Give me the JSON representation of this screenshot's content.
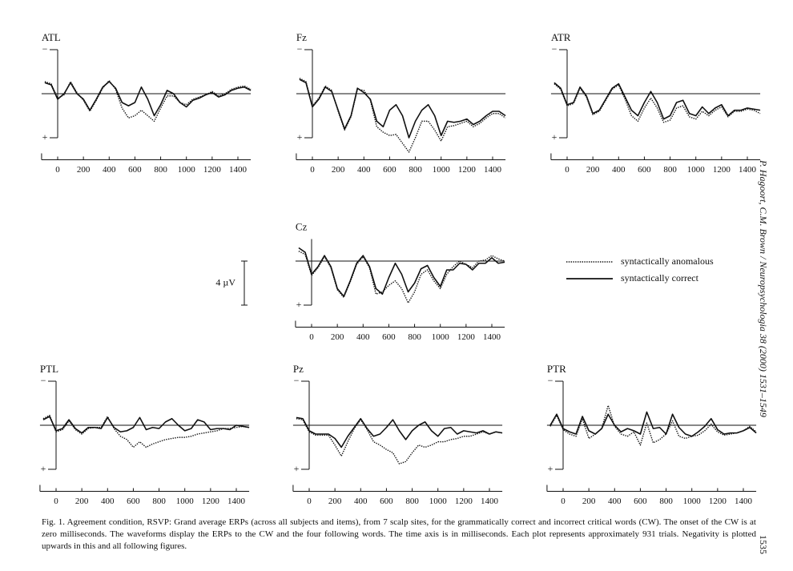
{
  "chart_data": [
    {
      "type": "line",
      "title": "ATL",
      "x": [
        -100,
        -50,
        0,
        50,
        100,
        150,
        200,
        250,
        300,
        350,
        400,
        450,
        500,
        550,
        600,
        650,
        700,
        750,
        800,
        850,
        900,
        950,
        1000,
        1050,
        1100,
        1150,
        1200,
        1250,
        1300,
        1350,
        1400,
        1450,
        1500
      ],
      "series": [
        {
          "name": "syntactically anomalous",
          "color": "#111111",
          "style": "dotted",
          "values": [
            -1.1,
            -0.9,
            0.4,
            0.1,
            -1.1,
            -0.1,
            0.6,
            1.6,
            0.6,
            -0.5,
            -1.2,
            -0.4,
            1.3,
            2.2,
            2.0,
            1.5,
            2.0,
            2.5,
            1.3,
            0.2,
            0.2,
            0.8,
            1.0,
            0.5,
            0.3,
            0.1,
            -0.2,
            0.2,
            0,
            -0.4,
            -0.6,
            -0.7,
            -0.4
          ]
        },
        {
          "name": "syntactically correct",
          "color": "#111111",
          "style": "solid",
          "values": [
            -1.0,
            -0.8,
            0.5,
            0,
            -1.0,
            0,
            0.5,
            1.5,
            0.5,
            -0.6,
            -1.1,
            -0.5,
            0.8,
            1.1,
            0.8,
            -0.6,
            0.5,
            2.0,
            1.0,
            -0.3,
            0,
            0.8,
            1.2,
            0.6,
            0.4,
            0.1,
            -0.1,
            0.3,
            0.1,
            -0.3,
            -0.5,
            -0.6,
            -0.3
          ]
        }
      ],
      "xlim": [
        -125,
        1500
      ],
      "ylim": [
        6,
        -4
      ],
      "xticks": [
        0,
        200,
        400,
        600,
        800,
        1000,
        1200,
        1400
      ],
      "yticks": [
        {
          "value": -4,
          "label": "−"
        },
        {
          "value": 4,
          "label": "+"
        }
      ]
    },
    {
      "type": "line",
      "title": "Fz",
      "x": [
        -100,
        -50,
        0,
        50,
        100,
        150,
        200,
        250,
        300,
        350,
        400,
        450,
        500,
        550,
        600,
        650,
        700,
        750,
        800,
        850,
        900,
        950,
        1000,
        1050,
        1100,
        1150,
        1200,
        1250,
        1300,
        1350,
        1400,
        1450,
        1500
      ],
      "series": [
        {
          "name": "syntactically anomalous",
          "color": "#111111",
          "style": "dotted",
          "values": [
            -1.4,
            -1.1,
            1.1,
            0.4,
            -0.7,
            -0.3,
            1.6,
            3.3,
            2.1,
            -0.4,
            -0.3,
            0.6,
            3.0,
            3.5,
            3.8,
            3.7,
            4.5,
            5.3,
            4.0,
            2.5,
            2.5,
            3.3,
            4.3,
            3.0,
            2.9,
            2.7,
            2.5,
            3.0,
            2.7,
            2.2,
            1.8,
            1.8,
            2.2
          ]
        },
        {
          "name": "syntactically correct",
          "color": "#111111",
          "style": "solid",
          "values": [
            -1.3,
            -1.0,
            1.2,
            0.5,
            -0.6,
            -0.2,
            1.5,
            3.2,
            2.0,
            -0.5,
            -0.1,
            0.5,
            2.5,
            3.0,
            1.5,
            1.0,
            2.0,
            4.0,
            2.5,
            1.5,
            1.0,
            2.0,
            3.8,
            2.5,
            2.6,
            2.5,
            2.3,
            2.8,
            2.5,
            2.0,
            1.6,
            1.6,
            2.0
          ]
        }
      ],
      "xlim": [
        -125,
        1500
      ],
      "ylim": [
        6,
        -4
      ],
      "xticks": [
        0,
        200,
        400,
        600,
        800,
        1000,
        1200,
        1400
      ],
      "yticks": [
        {
          "value": -4,
          "label": "−"
        },
        {
          "value": 4,
          "label": "+"
        }
      ]
    },
    {
      "type": "line",
      "title": "ATR",
      "x": [
        -100,
        -50,
        0,
        50,
        100,
        150,
        200,
        250,
        300,
        350,
        400,
        450,
        500,
        550,
        600,
        650,
        700,
        750,
        800,
        850,
        900,
        950,
        1000,
        1050,
        1100,
        1150,
        1200,
        1250,
        1300,
        1350,
        1400,
        1450,
        1500
      ],
      "series": [
        {
          "name": "syntactically anomalous",
          "color": "#111111",
          "style": "dotted",
          "values": [
            -0.9,
            -0.4,
            1.1,
            0.9,
            -0.5,
            0.3,
            1.9,
            1.6,
            0.6,
            -0.4,
            -0.8,
            0.5,
            2.0,
            2.5,
            1.3,
            0.4,
            1.3,
            2.6,
            2.4,
            1.3,
            1.1,
            2.1,
            2.3,
            1.6,
            2.0,
            1.5,
            1.2,
            2.1,
            1.6,
            1.6,
            1.4,
            1.5,
            1.8
          ]
        },
        {
          "name": "syntactically correct",
          "color": "#111111",
          "style": "solid",
          "values": [
            -1.0,
            -0.5,
            1.0,
            0.8,
            -0.6,
            0.2,
            1.8,
            1.5,
            0.5,
            -0.5,
            -0.9,
            0.3,
            1.5,
            2.0,
            0.8,
            -0.2,
            0.8,
            2.3,
            2.0,
            0.8,
            0.6,
            1.8,
            2.0,
            1.2,
            1.8,
            1.3,
            1.0,
            2.0,
            1.5,
            1.5,
            1.3,
            1.4,
            1.5
          ]
        }
      ],
      "xlim": [
        -125,
        1500
      ],
      "ylim": [
        6,
        -4
      ],
      "xticks": [
        0,
        200,
        400,
        600,
        800,
        1000,
        1200,
        1400
      ],
      "yticks": [
        {
          "value": -4,
          "label": "−"
        },
        {
          "value": 4,
          "label": "+"
        }
      ]
    },
    {
      "type": "line",
      "title": "Cz",
      "x": [
        -100,
        -50,
        0,
        50,
        100,
        150,
        200,
        250,
        300,
        350,
        400,
        450,
        500,
        550,
        600,
        650,
        700,
        750,
        800,
        850,
        900,
        950,
        1000,
        1050,
        1100,
        1150,
        1200,
        1250,
        1300,
        1350,
        1400,
        1450,
        1500
      ],
      "series": [
        {
          "name": "syntactically anomalous",
          "color": "#111111",
          "style": "dotted",
          "values": [
            -0.9,
            -0.6,
            1.3,
            0.6,
            -0.4,
            0.6,
            2.6,
            3.3,
            1.9,
            0.3,
            -0.4,
            0.6,
            3.0,
            2.8,
            2.2,
            1.8,
            2.5,
            3.8,
            2.8,
            1.2,
            0.8,
            1.8,
            2.5,
            1.2,
            0.5,
            0,
            0.3,
            0.6,
            0,
            -0.1,
            -0.5,
            -0.2,
            0
          ]
        },
        {
          "name": "syntactically correct",
          "color": "#111111",
          "style": "solid",
          "values": [
            -1.2,
            -0.8,
            1.2,
            0.5,
            -0.5,
            0.5,
            2.5,
            3.2,
            1.8,
            0.2,
            -0.5,
            0.5,
            2.5,
            3.0,
            1.5,
            0.2,
            1.2,
            2.8,
            2.0,
            0.7,
            0.4,
            1.5,
            2.3,
            0.8,
            0.8,
            0.2,
            0.3,
            0.8,
            0.2,
            0.2,
            -0.3,
            0.2,
            0.1
          ]
        }
      ],
      "xlim": [
        -125,
        1500
      ],
      "ylim": [
        6,
        -2
      ],
      "xticks": [
        0,
        200,
        400,
        600,
        800,
        1000,
        1200,
        1400
      ],
      "yticks": [
        {
          "value": 4,
          "label": "+"
        }
      ]
    },
    {
      "type": "line",
      "title": "PTL",
      "x": [
        -100,
        -50,
        0,
        50,
        100,
        150,
        200,
        250,
        300,
        350,
        400,
        450,
        500,
        550,
        600,
        650,
        700,
        750,
        800,
        850,
        900,
        950,
        1000,
        1050,
        1100,
        1150,
        1200,
        1250,
        1300,
        1350,
        1400,
        1450,
        1500
      ],
      "series": [
        {
          "name": "syntactically anomalous",
          "color": "#111111",
          "style": "dotted",
          "values": [
            -0.6,
            -0.9,
            0.6,
            0.4,
            -0.4,
            0.4,
            0.8,
            0.3,
            0.2,
            0.2,
            -0.8,
            0.3,
            1.0,
            1.3,
            2.0,
            1.5,
            2.0,
            1.7,
            1.5,
            1.3,
            1.2,
            1.1,
            1.1,
            1.0,
            0.8,
            0.7,
            0.6,
            0.5,
            0.3,
            0.3,
            0.2,
            0.1,
            0.2
          ]
        },
        {
          "name": "syntactically correct",
          "color": "#111111",
          "style": "solid",
          "values": [
            -0.5,
            -0.8,
            0.5,
            0.3,
            -0.5,
            0.3,
            0.7,
            0.2,
            0.2,
            0.3,
            -0.7,
            0.2,
            0.6,
            0.5,
            0.2,
            -0.7,
            0.4,
            0.2,
            0.3,
            -0.3,
            -0.6,
            0,
            0.5,
            0.3,
            -0.5,
            -0.3,
            0.4,
            0.3,
            0.3,
            0.4,
            0,
            0.1,
            0.2
          ]
        }
      ],
      "xlim": [
        -125,
        1500
      ],
      "ylim": [
        6,
        -4
      ],
      "xticks": [
        0,
        200,
        400,
        600,
        800,
        1000,
        1200,
        1400
      ],
      "yticks": [
        {
          "value": -4,
          "label": "−"
        },
        {
          "value": 4,
          "label": "+"
        }
      ]
    },
    {
      "type": "line",
      "title": "Pz",
      "x": [
        -100,
        -50,
        0,
        50,
        100,
        150,
        200,
        250,
        300,
        350,
        400,
        450,
        500,
        550,
        600,
        650,
        700,
        750,
        800,
        850,
        900,
        950,
        1000,
        1050,
        1100,
        1150,
        1200,
        1250,
        1300,
        1350,
        1400,
        1450,
        1500
      ],
      "series": [
        {
          "name": "syntactically anomalous",
          "color": "#111111",
          "style": "dotted",
          "values": [
            -0.6,
            -0.5,
            0.6,
            0.9,
            0.9,
            0.9,
            1.8,
            2.8,
            1.5,
            0.3,
            -0.5,
            0.4,
            1.5,
            1.8,
            2.2,
            2.5,
            3.5,
            3.3,
            2.5,
            1.8,
            2.0,
            1.8,
            1.5,
            1.5,
            1.3,
            1.2,
            1.0,
            1.0,
            0.8,
            0.6,
            0.8,
            0.6,
            0.7
          ]
        },
        {
          "name": "syntactically correct",
          "color": "#111111",
          "style": "solid",
          "values": [
            -0.7,
            -0.6,
            0.5,
            0.8,
            0.8,
            0.8,
            1.2,
            2.0,
            1.0,
            0.2,
            -0.6,
            0.3,
            1.0,
            0.8,
            0.2,
            -0.5,
            0.5,
            1.3,
            0.5,
            0,
            -0.3,
            0.5,
            1.0,
            0.3,
            0.2,
            0.8,
            0.5,
            0.6,
            0.7,
            0.5,
            0.8,
            0.6,
            0.7
          ]
        }
      ],
      "xlim": [
        -125,
        1500
      ],
      "ylim": [
        6,
        -4
      ],
      "xticks": [
        0,
        200,
        400,
        600,
        800,
        1000,
        1200,
        1400
      ],
      "yticks": [
        {
          "value": -4,
          "label": "−"
        },
        {
          "value": 4,
          "label": "+"
        }
      ]
    },
    {
      "type": "line",
      "title": "PTR",
      "x": [
        -100,
        -50,
        0,
        50,
        100,
        150,
        200,
        250,
        300,
        350,
        400,
        450,
        500,
        550,
        600,
        650,
        700,
        750,
        800,
        850,
        900,
        950,
        1000,
        1050,
        1100,
        1150,
        1200,
        1250,
        1300,
        1350,
        1400,
        1450,
        1500
      ],
      "series": [
        {
          "name": "syntactically anomalous",
          "color": "#111111",
          "style": "dotted",
          "values": [
            0.1,
            -0.9,
            0.4,
            0.8,
            1.0,
            -0.6,
            1.2,
            0.8,
            0.3,
            -1.8,
            0.1,
            0.8,
            1.0,
            0.6,
            1.8,
            -0.2,
            1.6,
            1.3,
            0.8,
            -0.4,
            1.0,
            1.2,
            1.0,
            0.9,
            0.5,
            -0.1,
            0.6,
            0.9,
            0.8,
            0.7,
            0.5,
            0.1,
            0.6
          ]
        },
        {
          "name": "syntactically correct",
          "color": "#111111",
          "style": "solid",
          "values": [
            0,
            -1.0,
            0.3,
            0.6,
            0.8,
            -0.8,
            0.5,
            0.8,
            0.3,
            -1.0,
            0,
            0.6,
            0.3,
            0.5,
            0.8,
            -1.2,
            0.3,
            0.2,
            0.8,
            -1.0,
            0.2,
            0.8,
            1.0,
            0.6,
            0.1,
            -0.6,
            0.4,
            0.8,
            0.7,
            0.7,
            0.5,
            0.2,
            0.7
          ]
        }
      ],
      "xlim": [
        -125,
        1500
      ],
      "ylim": [
        6,
        -4
      ],
      "xticks": [
        0,
        200,
        400,
        600,
        800,
        1000,
        1200,
        1400
      ],
      "yticks": [
        {
          "value": -4,
          "label": "−"
        },
        {
          "value": 4,
          "label": "+"
        }
      ]
    }
  ],
  "scale_bar": {
    "label": "4 µV",
    "value": 4
  },
  "caption": "Fig. 1. Agreement condition, RSVP: Grand average ERPs (across all subjects and items), from 7 scalp sites, for the grammatically correct and incorrect critical words (CW). The onset of the CW is at zero milliseconds. The waveforms display the ERPs to the CW and the four following words. The time axis is in milliseconds. Each plot represents approximately 931 trials. Negativity is plotted upwards in this and all following figures.",
  "running_head": "P. Hagoort, C.M. Brown / Neuropsychologia 38 (2000) 1531–1549",
  "page_number": "1535"
}
